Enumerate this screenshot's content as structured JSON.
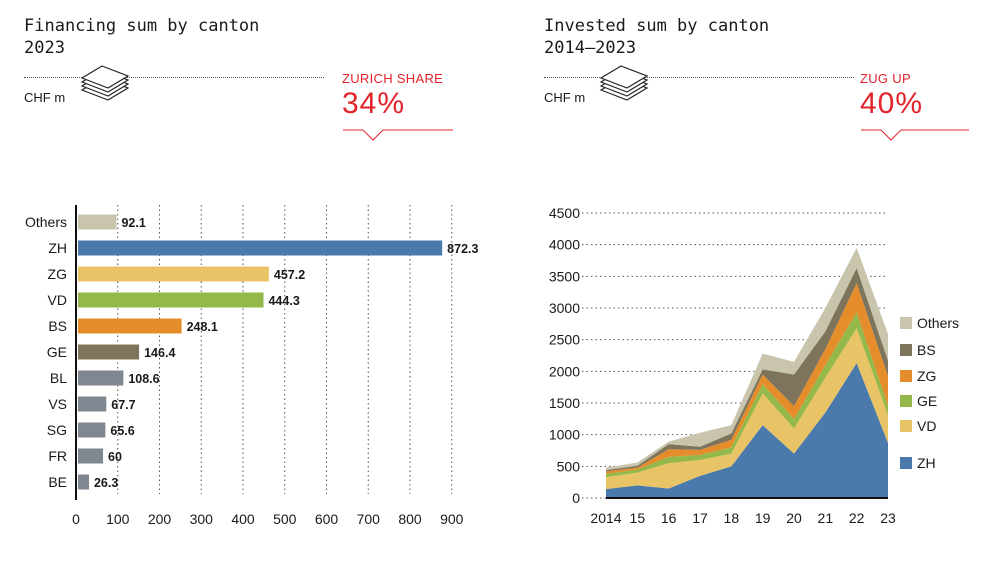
{
  "left": {
    "title_line1": "Financing sum by canton",
    "title_line2": "2023",
    "unit": "CHF m",
    "kpi_label": "ZURICH SHARE",
    "kpi_value": "34%"
  },
  "right": {
    "title_line1": "Invested sum by canton",
    "title_line2": "2014–2023",
    "unit": "CHF m",
    "kpi_label": "ZUG UP",
    "kpi_value": "40%"
  },
  "icons": {
    "left": "money-stack-icon",
    "right": "money-stack-icon",
    "kpi_pointer": "chevron-down-icon"
  },
  "chart_data": [
    {
      "type": "bar",
      "orientation": "horizontal",
      "categories": [
        "Others",
        "ZH",
        "ZG",
        "VD",
        "BS",
        "GE",
        "BL",
        "VS",
        "SG",
        "FR",
        "BE"
      ],
      "values": [
        92.1,
        872.3,
        457.2,
        444.3,
        248.1,
        146.4,
        108.6,
        67.7,
        65.6,
        60,
        26.3
      ],
      "value_labels": [
        "92.1",
        "872.3",
        "457.2",
        "444.3",
        "248.1",
        "146.4",
        "108.6",
        "67.7",
        "65.6",
        "60",
        "26.3"
      ],
      "colors": [
        "#c9c4ac",
        "#4a7aab",
        "#e8c466",
        "#94b84a",
        "#e58c2b",
        "#7e745c",
        "#7f8790",
        "#7f8790",
        "#7f8790",
        "#7f8790",
        "#7f8790"
      ],
      "xticks": [
        0,
        100,
        200,
        300,
        400,
        500,
        600,
        700,
        800,
        900
      ],
      "xlim": [
        0,
        900
      ],
      "grid": "vertical-dotted"
    },
    {
      "type": "area",
      "stacked": true,
      "x": [
        2014,
        2015,
        2016,
        2017,
        2018,
        2019,
        2020,
        2021,
        2022,
        2023
      ],
      "xtick_labels": [
        "2014",
        "15",
        "16",
        "17",
        "18",
        "19",
        "20",
        "21",
        "22",
        "23"
      ],
      "yticks": [
        0,
        500,
        1000,
        1500,
        2000,
        2500,
        3000,
        3500,
        4000,
        4500
      ],
      "ylim": [
        0,
        4500
      ],
      "legend_position": "right",
      "series": [
        {
          "name": "ZH",
          "color": "#4a7aab",
          "values": [
            140,
            200,
            150,
            350,
            500,
            1150,
            700,
            1350,
            2130,
            870
          ]
        },
        {
          "name": "VD",
          "color": "#e8c466",
          "values": [
            190,
            200,
            400,
            250,
            200,
            500,
            400,
            550,
            550,
            440
          ]
        },
        {
          "name": "GE",
          "color": "#94b84a",
          "values": [
            50,
            50,
            100,
            80,
            100,
            150,
            150,
            200,
            250,
            150
          ]
        },
        {
          "name": "ZG",
          "color": "#e58c2b",
          "values": [
            40,
            30,
            120,
            80,
            120,
            150,
            200,
            250,
            460,
            460
          ]
        },
        {
          "name": "BS",
          "color": "#7e745c",
          "values": [
            20,
            30,
            80,
            50,
            100,
            80,
            500,
            280,
            240,
            250
          ]
        },
        {
          "name": "Others",
          "color": "#c9c4ac",
          "values": [
            40,
            50,
            40,
            220,
            130,
            250,
            200,
            370,
            320,
            420
          ]
        }
      ]
    }
  ]
}
